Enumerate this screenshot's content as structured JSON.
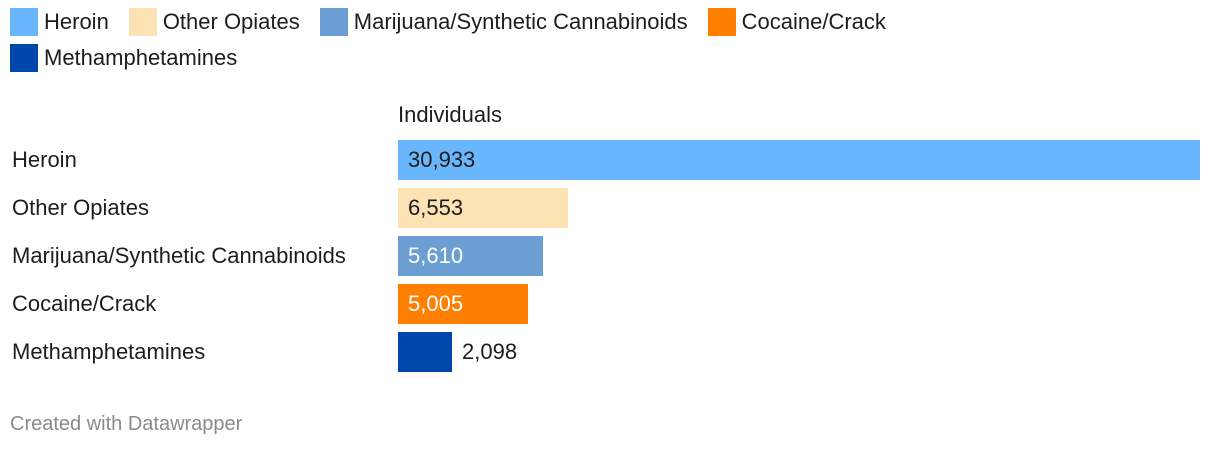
{
  "legend": [
    {
      "label": "Heroin",
      "color": "#6ab6fd"
    },
    {
      "label": "Other Opiates",
      "color": "#fde2b3"
    },
    {
      "label": "Marijuana/Synthetic Cannabinoids",
      "color": "#6b9ed2"
    },
    {
      "label": "Cocaine/Crack",
      "color": "#ff7f00"
    },
    {
      "label": "Methamphetamines",
      "color": "#0047ab"
    }
  ],
  "footer": {
    "text": "Created with Datawrapper"
  },
  "chart_data": {
    "type": "bar",
    "orientation": "horizontal",
    "column_header": "Individuals",
    "categories": [
      "Heroin",
      "Other Opiates",
      "Marijuana/Synthetic Cannabinoids",
      "Cocaine/Crack",
      "Methamphetamines"
    ],
    "values": [
      30933,
      6553,
      5610,
      5005,
      2098
    ],
    "value_labels": [
      "30,933",
      "6,553",
      "5,610",
      "5,005",
      "2,098"
    ],
    "colors": [
      "#6ab6fd",
      "#fde2b3",
      "#6b9ed2",
      "#ff7f00",
      "#0047ab"
    ],
    "value_label_colors": [
      "#1d1d1d",
      "#1d1d1d",
      "#ffffff",
      "#ffffff",
      "#1d1d1d"
    ],
    "xlim": [
      0,
      30933
    ],
    "legend_position": "top-left"
  }
}
